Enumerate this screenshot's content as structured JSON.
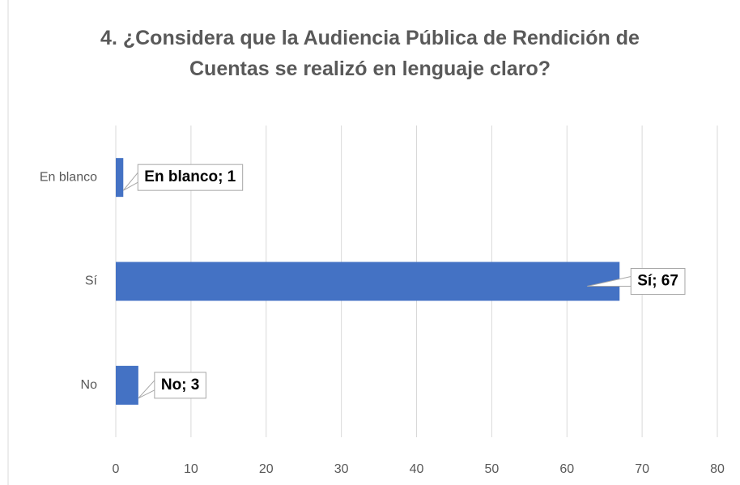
{
  "chart_data": {
    "type": "bar",
    "orientation": "horizontal",
    "title": "4. ¿Considera que la Audiencia Pública de Rendición de Cuentas se realizó en lenguaje claro?",
    "categories": [
      "En blanco",
      "Sí",
      "No"
    ],
    "values": [
      1,
      67,
      3
    ],
    "value_labels": [
      "En blanco; 1",
      "Sí; 67",
      "No; 3"
    ],
    "color": "#4472c4",
    "xlim": [
      0,
      80
    ],
    "xticks": [
      0,
      10,
      20,
      30,
      40,
      50,
      60,
      70,
      80
    ],
    "grid": true
  }
}
